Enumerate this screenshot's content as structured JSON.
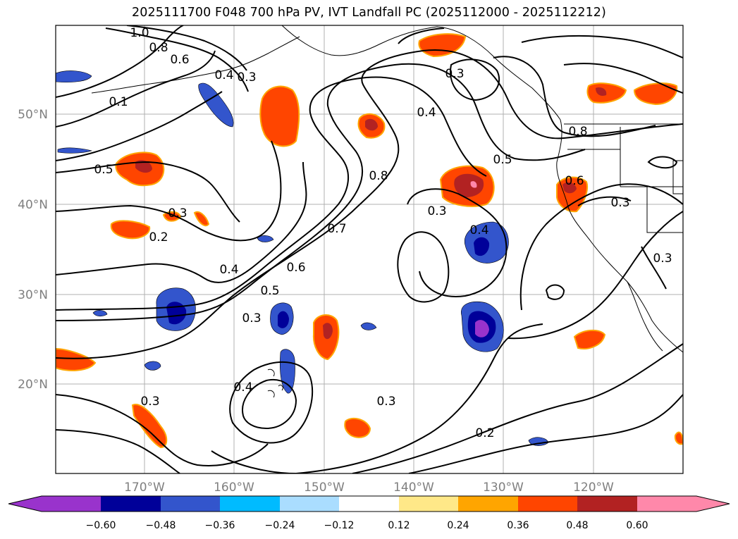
{
  "title": "2025111700 F048 700 hPa PV, IVT Landfall PC (2025112000 - 2025112212)",
  "map": {
    "lat_ticks": [
      "50°N",
      "40°N",
      "30°N",
      "20°N"
    ],
    "lon_ticks": [
      "170°W",
      "160°W",
      "150°W",
      "140°W",
      "130°W",
      "120°W"
    ],
    "contour_labels": [
      "1.0",
      "0.8",
      "0.6",
      "0.4",
      "0.3",
      "0.1",
      "0.5",
      "0.3",
      "0.2",
      "0.4",
      "0.5",
      "0.6",
      "0.7",
      "0.8",
      "0.3",
      "0.4",
      "0.3",
      "0.4",
      "0.3",
      "0.5",
      "0.8",
      "0.6",
      "0.3",
      "0.3",
      "0.4",
      "0.3",
      "0.3",
      "0.2"
    ]
  },
  "colorbar": {
    "labels": [
      "−0.60",
      "−0.48",
      "−0.36",
      "−0.24",
      "−0.12",
      "0.12",
      "0.24",
      "0.36",
      "0.48",
      "0.60"
    ],
    "colors": [
      "#9933cc",
      "#000099",
      "#3355cc",
      "#00bbff",
      "#aaddff",
      "#ffffff",
      "#ffe888",
      "#ffa500",
      "#ff4500",
      "#b22222",
      "#ff88aa",
      "#ff88aa"
    ]
  }
}
